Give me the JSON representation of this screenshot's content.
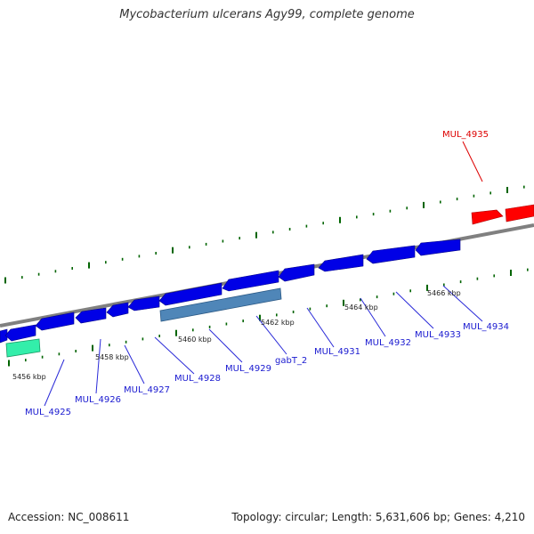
{
  "title": "Mycobacterium ulcerans Agy99, complete genome",
  "footer": {
    "accession": "Accession: NC_008611",
    "summary": "Topology: circular; Length: 5,631,606 bp; Genes: 4,210"
  },
  "colors": {
    "backbone": "#808080",
    "forward_gene": "#ff0000",
    "reverse_gene": "#0000e6",
    "rna_gene": "#4682b4",
    "other_feature": "#33eeaa",
    "tick": "#006400",
    "gene_label": "#1a1ad0",
    "highlight_label": "#dd0000"
  },
  "position_ticks": [
    "5456 kbp",
    "5458 kbp",
    "5460 kbp",
    "5462 kbp",
    "5464 kbp",
    "5466 kbp"
  ],
  "gene_labels": [
    {
      "label": "MUL_4925",
      "strand": "reverse"
    },
    {
      "label": "MUL_4926",
      "strand": "reverse"
    },
    {
      "label": "MUL_4927",
      "strand": "reverse"
    },
    {
      "label": "MUL_4928",
      "strand": "reverse"
    },
    {
      "label": "MUL_4929",
      "strand": "reverse"
    },
    {
      "label": "gabT_2",
      "strand": "reverse"
    },
    {
      "label": "MUL_4931",
      "strand": "reverse"
    },
    {
      "label": "MUL_4932",
      "strand": "reverse"
    },
    {
      "label": "MUL_4933",
      "strand": "reverse"
    },
    {
      "label": "MUL_4934",
      "strand": "reverse"
    },
    {
      "label": "MUL_4935",
      "strand": "forward"
    }
  ]
}
